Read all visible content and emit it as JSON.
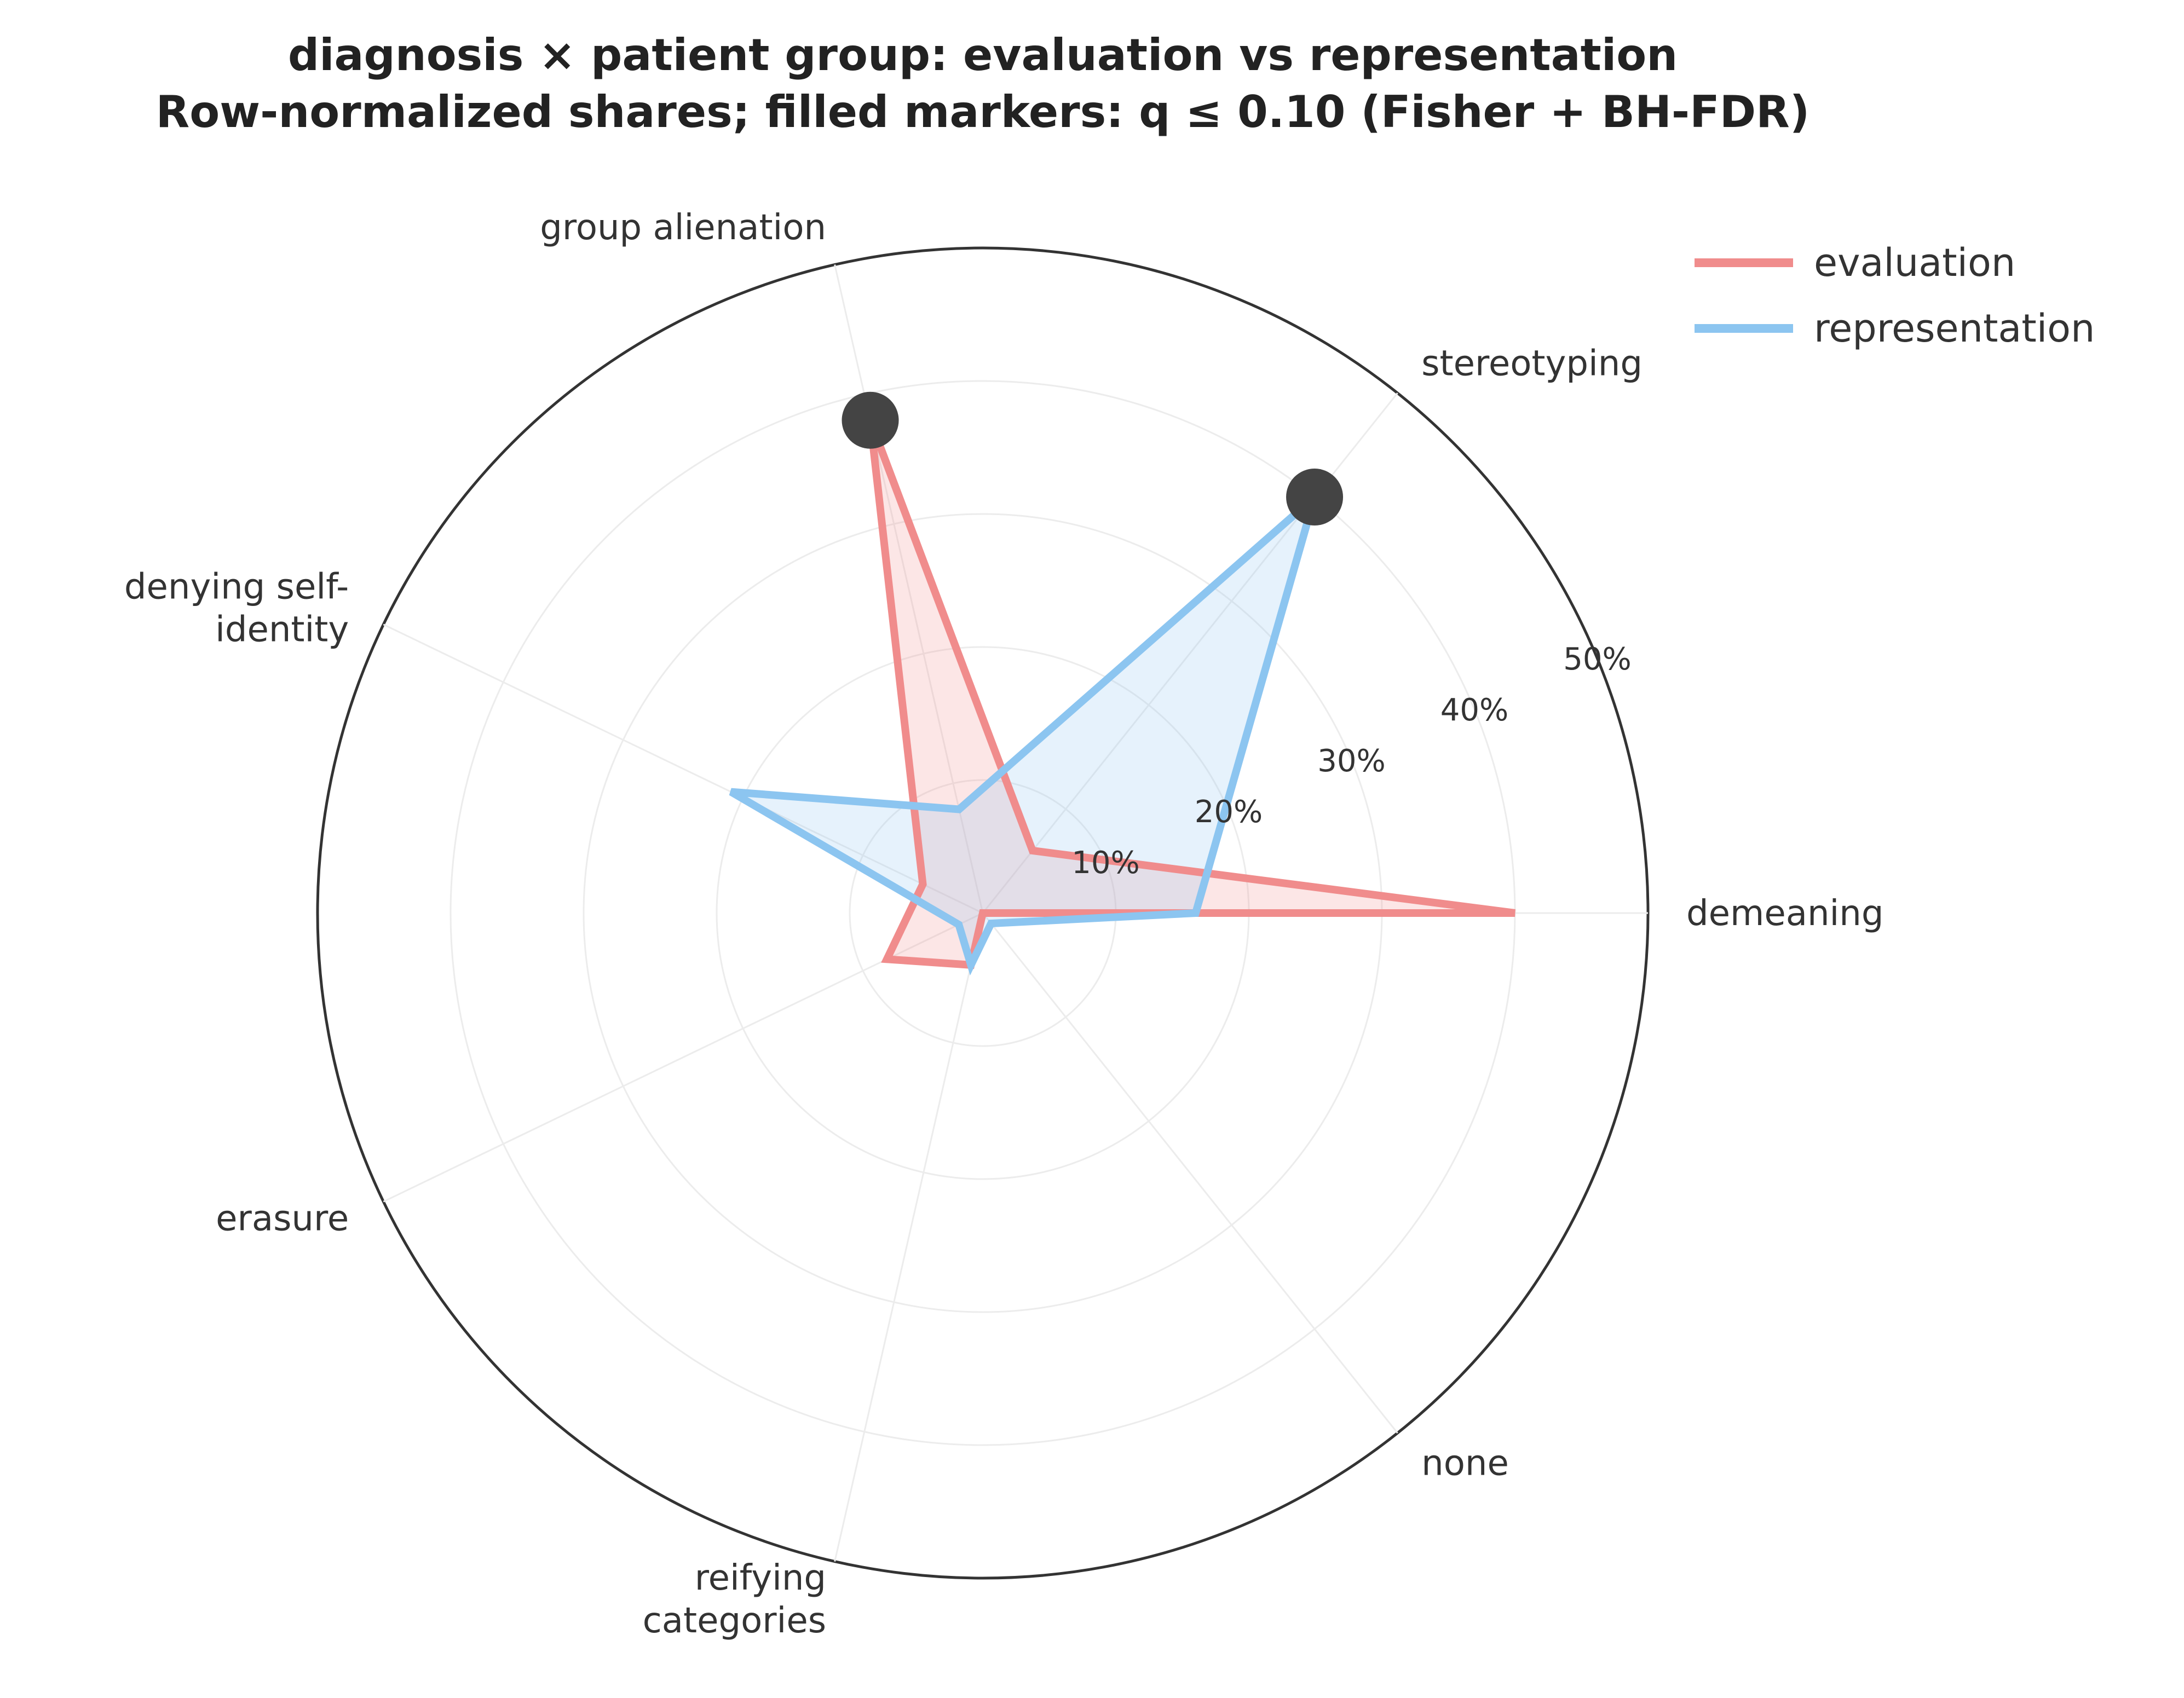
{
  "chart_data": {
    "type": "radar",
    "title_lines": [
      "diagnosis × patient group: evaluation vs representation",
      "Row-normalized shares; filled markers: q ≤ 0.10 (Fisher + BH-FDR)"
    ],
    "categories": [
      [
        "demeaning"
      ],
      [
        "stereotyping"
      ],
      [
        "group alienation"
      ],
      [
        "denying self-",
        "identity"
      ],
      [
        "erasure"
      ],
      [
        "reifying",
        "categories"
      ],
      [
        "none"
      ]
    ],
    "radial_ticks": [
      "10%",
      "20%",
      "30%",
      "40%",
      "50%"
    ],
    "radial_tick_values": [
      10,
      20,
      30,
      40,
      50
    ],
    "rlim": [
      0,
      50
    ],
    "series": [
      {
        "name": "evaluation",
        "color": "#f08c8c",
        "fill": "#f08c8c",
        "values": [
          40,
          6,
          38,
          5,
          8,
          4,
          0
        ]
      },
      {
        "name": "representation",
        "color": "#8cc5f0",
        "fill": "#8cc5f0",
        "values": [
          16,
          40,
          8,
          21,
          2,
          4,
          1
        ]
      }
    ],
    "significant_markers": [
      {
        "series": "representation",
        "category_index": 1,
        "value": 40
      },
      {
        "series": "evaluation",
        "category_index": 2,
        "value": 38
      }
    ],
    "marker_color": "#444444",
    "grid": true,
    "legend_position": "top-right"
  }
}
